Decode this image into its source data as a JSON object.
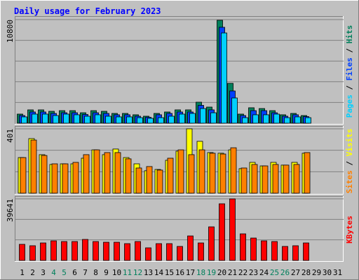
{
  "chart_data": [
    {
      "type": "bar",
      "title": "Daily usage for February 2023",
      "legend_separator": " / ",
      "ylim": [
        0,
        10800
      ],
      "yticks": [
        10800
      ],
      "series": [
        {
          "name": "Hits",
          "color": "#00805c",
          "values": [
            950,
            1390,
            1390,
            1240,
            1310,
            1310,
            1090,
            1310,
            1240,
            1020,
            1020,
            880,
            730,
            1020,
            1170,
            1390,
            1390,
            2190,
            1680,
            10730,
            4160,
            950,
            1610,
            1530,
            1310,
            880,
            1020,
            800,
            null,
            null,
            null
          ]
        },
        {
          "name": "Files",
          "color": "#0040ff",
          "values": [
            800,
            1170,
            1170,
            1020,
            1090,
            1090,
            910,
            1090,
            1020,
            880,
            880,
            730,
            620,
            880,
            1020,
            1170,
            1170,
            1860,
            1390,
            10000,
            3360,
            800,
            1310,
            1310,
            1090,
            730,
            880,
            690,
            null,
            null,
            null
          ]
        },
        {
          "name": "Pages",
          "color": "#00d0ff",
          "values": [
            660,
            950,
            950,
            800,
            950,
            880,
            730,
            880,
            730,
            660,
            660,
            580,
            510,
            580,
            730,
            950,
            1020,
            1530,
            1090,
            9410,
            2630,
            580,
            880,
            880,
            950,
            580,
            660,
            580,
            null,
            null,
            null
          ]
        }
      ]
    },
    {
      "type": "bar",
      "legend_separator": " / ",
      "ylim": [
        0,
        401
      ],
      "yticks": [
        401
      ],
      "series": [
        {
          "name": "Visits",
          "color": "#ffff00",
          "values": [
            222,
            340,
            240,
            179,
            183,
            183,
            218,
            270,
            240,
            275,
            222,
            183,
            140,
            148,
            205,
            262,
            401,
            323,
            253,
            249,
            270,
            153,
            192,
            170,
            192,
            175,
            192,
            249,
            null,
            null,
            null
          ]
        },
        {
          "name": "Sites",
          "color": "#ff8000",
          "values": [
            222,
            331,
            235,
            183,
            183,
            192,
            240,
            270,
            253,
            253,
            214,
            157,
            166,
            144,
            218,
            270,
            240,
            270,
            249,
            244,
            283,
            157,
            179,
            170,
            179,
            175,
            179,
            253,
            null,
            null,
            null
          ]
        }
      ]
    },
    {
      "type": "bar",
      "ylim": [
        0,
        39641
      ],
      "yticks": [
        39641
      ],
      "categories": [
        "1",
        "2",
        "3",
        "4",
        "5",
        "6",
        "7",
        "8",
        "9",
        "10",
        "11",
        "12",
        "13",
        "14",
        "15",
        "16",
        "17",
        "18",
        "19",
        "20",
        "21",
        "22",
        "23",
        "24",
        "25",
        "26",
        "27",
        "28",
        "29",
        "30",
        "31"
      ],
      "label_colors": [
        "#000000",
        "#000000",
        "#000000",
        "#00805c",
        "#00805c",
        "#000000",
        "#000000",
        "#000000",
        "#000000",
        "#000000",
        "#00805c",
        "#00805c",
        "#000000",
        "#000000",
        "#000000",
        "#000000",
        "#000000",
        "#00805c",
        "#00805c",
        "#000000",
        "#000000",
        "#000000",
        "#000000",
        "#000000",
        "#00805c",
        "#00805c",
        "#000000",
        "#000000",
        "#000000",
        "#000000",
        "#000000"
      ],
      "series": [
        {
          "name": "KBytes",
          "color": "#ff0000",
          "values": [
            10350,
            9450,
            11250,
            12600,
            12150,
            12150,
            13500,
            12150,
            11700,
            11700,
            10800,
            12150,
            8100,
            10800,
            10800,
            9000,
            15750,
            11250,
            21600,
            36450,
            39600,
            17100,
            14400,
            12600,
            12150,
            9000,
            9450,
            11250,
            null,
            null,
            null
          ]
        }
      ]
    }
  ]
}
